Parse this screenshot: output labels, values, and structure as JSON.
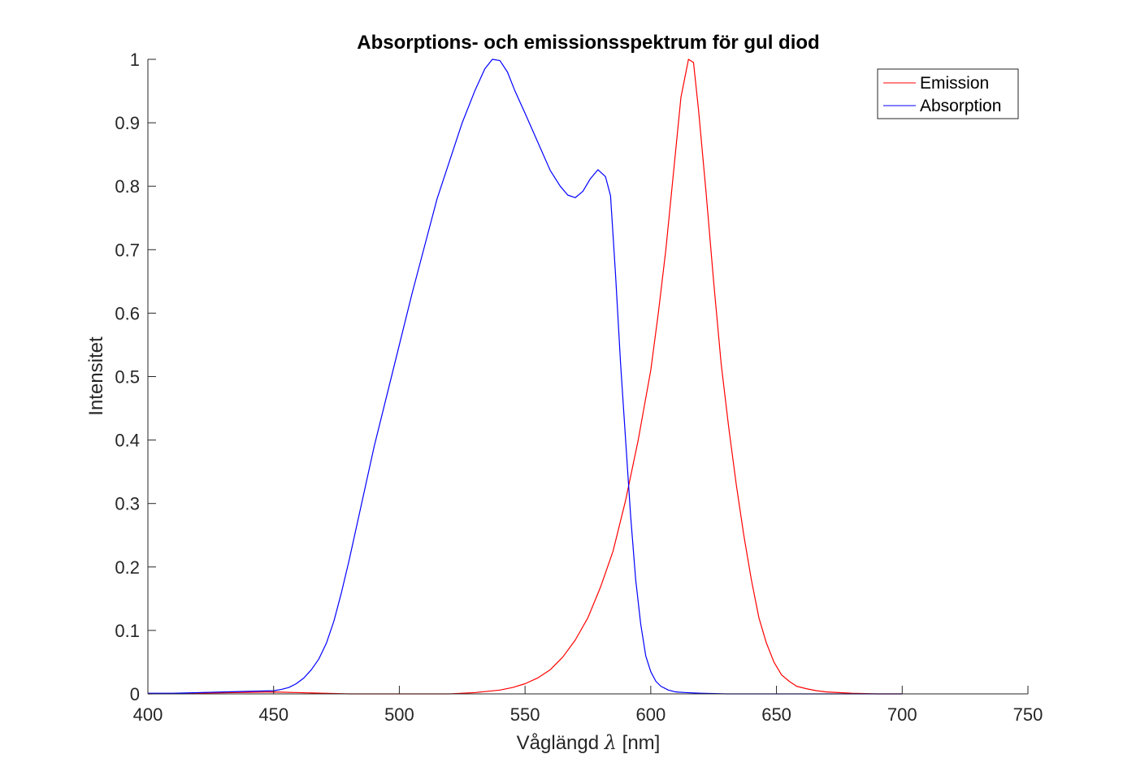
{
  "chart_data": {
    "type": "line",
    "title": "Absorptions- och emissionsspektrum för gul diod",
    "xlabel_prefix": "Våglängd",
    "xlabel_symbol": "λ",
    "xlabel_suffix": "[nm]",
    "ylabel": "Intensitet",
    "xlim": [
      400,
      750
    ],
    "ylim": [
      0,
      1
    ],
    "xticks": [
      400,
      450,
      500,
      550,
      600,
      650,
      700,
      750
    ],
    "yticks": [
      0,
      0.1,
      0.2,
      0.3,
      0.4,
      0.5,
      0.6,
      0.7,
      0.8,
      0.9,
      1
    ],
    "ytick_labels": [
      "0",
      "0.1",
      "0.2",
      "0.3",
      "0.4",
      "0.5",
      "0.6",
      "0.7",
      "0.8",
      "0.9",
      "1"
    ],
    "grid": false,
    "legend_position": "top-right",
    "series": [
      {
        "name": "Emission",
        "color": "#ff0000",
        "x": [
          400,
          450,
          460,
          470,
          480,
          500,
          520,
          530,
          540,
          545,
          550,
          555,
          560,
          565,
          570,
          575,
          580,
          585,
          590,
          595,
          600,
          603,
          606,
          609,
          612,
          615,
          617,
          619,
          622,
          625,
          628,
          631,
          634,
          637,
          640,
          643,
          646,
          649,
          652,
          655,
          658,
          662,
          666,
          670,
          680,
          690,
          700
        ],
        "y": [
          0.0,
          0.003,
          0.002,
          0.001,
          0.0,
          0.0,
          0.0,
          0.002,
          0.006,
          0.01,
          0.016,
          0.025,
          0.038,
          0.058,
          0.085,
          0.12,
          0.168,
          0.225,
          0.305,
          0.4,
          0.51,
          0.6,
          0.7,
          0.82,
          0.94,
          1.0,
          0.995,
          0.92,
          0.79,
          0.65,
          0.52,
          0.42,
          0.33,
          0.25,
          0.18,
          0.12,
          0.08,
          0.05,
          0.03,
          0.02,
          0.012,
          0.008,
          0.005,
          0.003,
          0.001,
          0.0,
          0.0
        ]
      },
      {
        "name": "Absorption",
        "color": "#0000ff",
        "x": [
          400,
          410,
          420,
          430,
          440,
          450,
          453,
          456,
          459,
          462,
          465,
          468,
          471,
          474,
          477,
          480,
          485,
          490,
          495,
          500,
          505,
          510,
          515,
          520,
          525,
          530,
          534,
          537,
          540,
          543,
          546,
          550,
          555,
          560,
          564,
          567,
          570,
          573,
          576,
          579,
          582,
          584,
          586,
          588,
          590,
          592,
          594,
          596,
          598,
          600,
          602,
          604,
          607,
          610,
          614,
          620,
          630,
          650,
          700
        ],
        "y": [
          0.001,
          0.001,
          0.002,
          0.003,
          0.004,
          0.005,
          0.007,
          0.01,
          0.016,
          0.025,
          0.038,
          0.055,
          0.08,
          0.115,
          0.16,
          0.21,
          0.3,
          0.39,
          0.47,
          0.55,
          0.63,
          0.705,
          0.78,
          0.84,
          0.9,
          0.95,
          0.985,
          1.0,
          0.998,
          0.98,
          0.95,
          0.915,
          0.87,
          0.825,
          0.8,
          0.786,
          0.782,
          0.792,
          0.812,
          0.826,
          0.815,
          0.785,
          0.66,
          0.52,
          0.4,
          0.28,
          0.18,
          0.11,
          0.06,
          0.035,
          0.02,
          0.012,
          0.006,
          0.003,
          0.002,
          0.001,
          0.0,
          0.0,
          0.0
        ]
      }
    ]
  }
}
